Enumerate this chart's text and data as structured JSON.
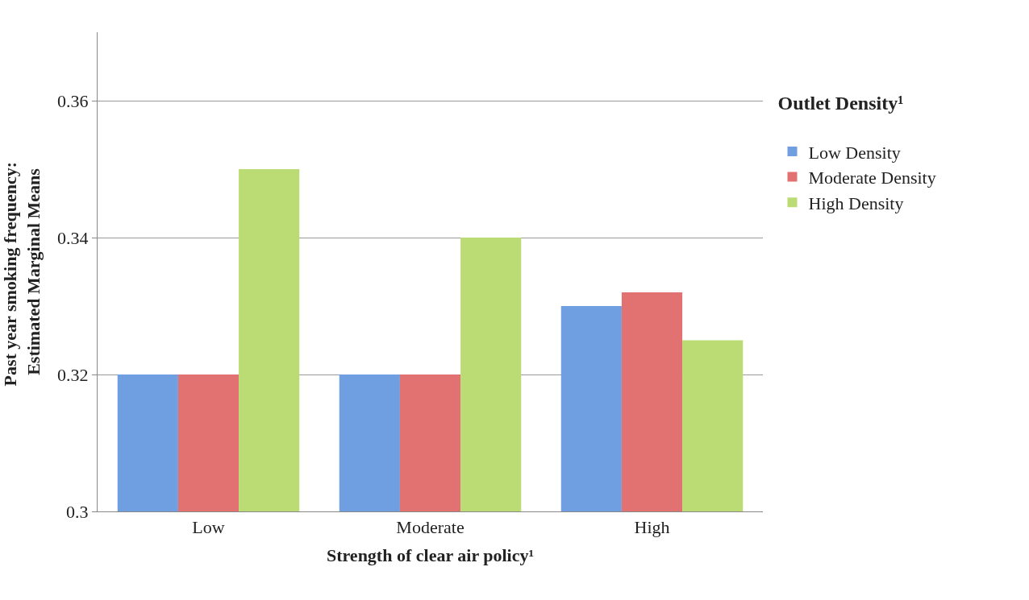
{
  "chart_data": {
    "type": "bar",
    "xlabel": "Strength of clear air policy¹",
    "ylabel": "Past year smoking frequency: Estimated Marginal Means",
    "legend_title": "Outlet Density¹",
    "categories": [
      "Low",
      "Moderate",
      "High"
    ],
    "series": [
      {
        "name": "Low Density",
        "color": "#6f9fe0",
        "values": [
          0.32,
          0.32,
          0.33
        ]
      },
      {
        "name": "Moderate Density",
        "color": "#e27272",
        "values": [
          0.32,
          0.32,
          0.332
        ]
      },
      {
        "name": "High Density",
        "color": "#bbdc74",
        "values": [
          0.35,
          0.34,
          0.325
        ]
      }
    ],
    "ylim": [
      0.3,
      0.37
    ],
    "yticks": [
      0.3,
      0.32,
      0.34,
      0.36
    ],
    "grid": "y",
    "legend": "right"
  }
}
